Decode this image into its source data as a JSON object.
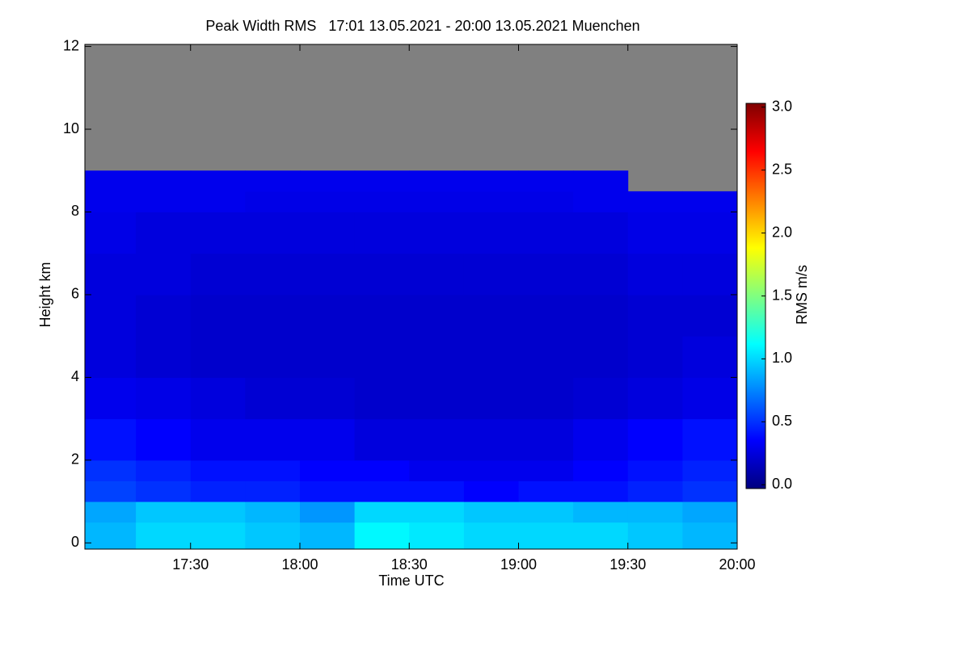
{
  "chart_data": {
    "type": "heatmap",
    "title": "Peak Width RMS   17:01 13.05.2021 - 20:00 13.05.2021 Muenchen",
    "x_label": "Time UTC",
    "y_label": "Height km",
    "colorbar_label": "RMS m/s",
    "xlim": [
      17.0167,
      20.0
    ],
    "xticks": [
      {
        "value": 17.5,
        "label": "17:30"
      },
      {
        "value": 18,
        "label": "18:00"
      },
      {
        "value": 18.5,
        "label": "18:30"
      },
      {
        "value": 19,
        "label": "19:00"
      },
      {
        "value": 19.5,
        "label": "19:30"
      },
      {
        "value": 20,
        "label": "20:00"
      }
    ],
    "ylim": [
      -0.15,
      12.05
    ],
    "yticks": [
      0,
      2,
      4,
      6,
      8,
      10,
      12
    ],
    "clim": [
      -0.03,
      3.03
    ],
    "cticks": [
      {
        "value": 0,
        "label": "0.0"
      },
      {
        "value": 0.5,
        "label": "0.5"
      },
      {
        "value": 1,
        "label": "1.0"
      },
      {
        "value": 1.5,
        "label": "1.5"
      },
      {
        "value": 2,
        "label": "2.0"
      },
      {
        "value": 2.5,
        "label": "2.5"
      },
      {
        "value": 3,
        "label": "3.0"
      }
    ],
    "colormap": [
      "#00007f",
      "#0000ff",
      "#0080ff",
      "#00ffff",
      "#80ff80",
      "#ffff00",
      "#ff8000",
      "#ff0000",
      "#7f0000"
    ],
    "missing_color": "#808080",
    "x_edges": [
      17.0167,
      17.25,
      17.5,
      17.75,
      18,
      18.25,
      18.5,
      18.75,
      19,
      19.25,
      19.5,
      19.75,
      20
    ],
    "y_edges": [
      -0.15,
      0.5,
      1,
      1.5,
      2,
      3,
      4,
      5,
      6,
      7,
      8,
      8.5,
      9,
      12.05
    ],
    "values": [
      [
        0.9,
        1.0,
        1.0,
        0.95,
        0.9,
        1.1,
        1.05,
        1.0,
        1.0,
        1.0,
        0.95,
        0.9
      ],
      [
        0.85,
        0.95,
        0.95,
        0.9,
        0.8,
        1.0,
        1.0,
        0.95,
        0.95,
        0.9,
        0.9,
        0.85
      ],
      [
        0.55,
        0.5,
        0.45,
        0.45,
        0.4,
        0.4,
        0.4,
        0.35,
        0.4,
        0.4,
        0.45,
        0.5
      ],
      [
        0.5,
        0.45,
        0.4,
        0.4,
        0.35,
        0.35,
        0.3,
        0.3,
        0.3,
        0.35,
        0.4,
        0.45
      ],
      [
        0.4,
        0.35,
        0.3,
        0.3,
        0.3,
        0.25,
        0.25,
        0.25,
        0.25,
        0.3,
        0.35,
        0.4
      ],
      [
        0.3,
        0.28,
        0.25,
        0.22,
        0.22,
        0.2,
        0.2,
        0.2,
        0.2,
        0.22,
        0.25,
        0.28
      ],
      [
        0.25,
        0.22,
        0.2,
        0.2,
        0.2,
        0.2,
        0.2,
        0.2,
        0.2,
        0.2,
        0.22,
        0.25
      ],
      [
        0.25,
        0.22,
        0.2,
        0.2,
        0.2,
        0.2,
        0.2,
        0.2,
        0.2,
        0.2,
        0.22,
        0.22
      ],
      [
        0.25,
        0.25,
        0.22,
        0.22,
        0.22,
        0.22,
        0.22,
        0.22,
        0.22,
        0.22,
        0.25,
        0.25
      ],
      [
        0.28,
        0.25,
        0.25,
        0.25,
        0.25,
        0.25,
        0.25,
        0.25,
        0.25,
        0.25,
        0.28,
        0.28
      ],
      [
        0.3,
        0.3,
        0.3,
        0.28,
        0.28,
        0.28,
        0.28,
        0.28,
        0.28,
        0.3,
        0.3,
        0.3
      ],
      [
        0.3,
        0.3,
        0.3,
        0.3,
        0.3,
        0.3,
        0.3,
        0.3,
        0.3,
        0.3,
        null,
        null
      ],
      [
        null,
        null,
        null,
        null,
        null,
        null,
        null,
        null,
        null,
        null,
        null,
        null
      ]
    ]
  }
}
